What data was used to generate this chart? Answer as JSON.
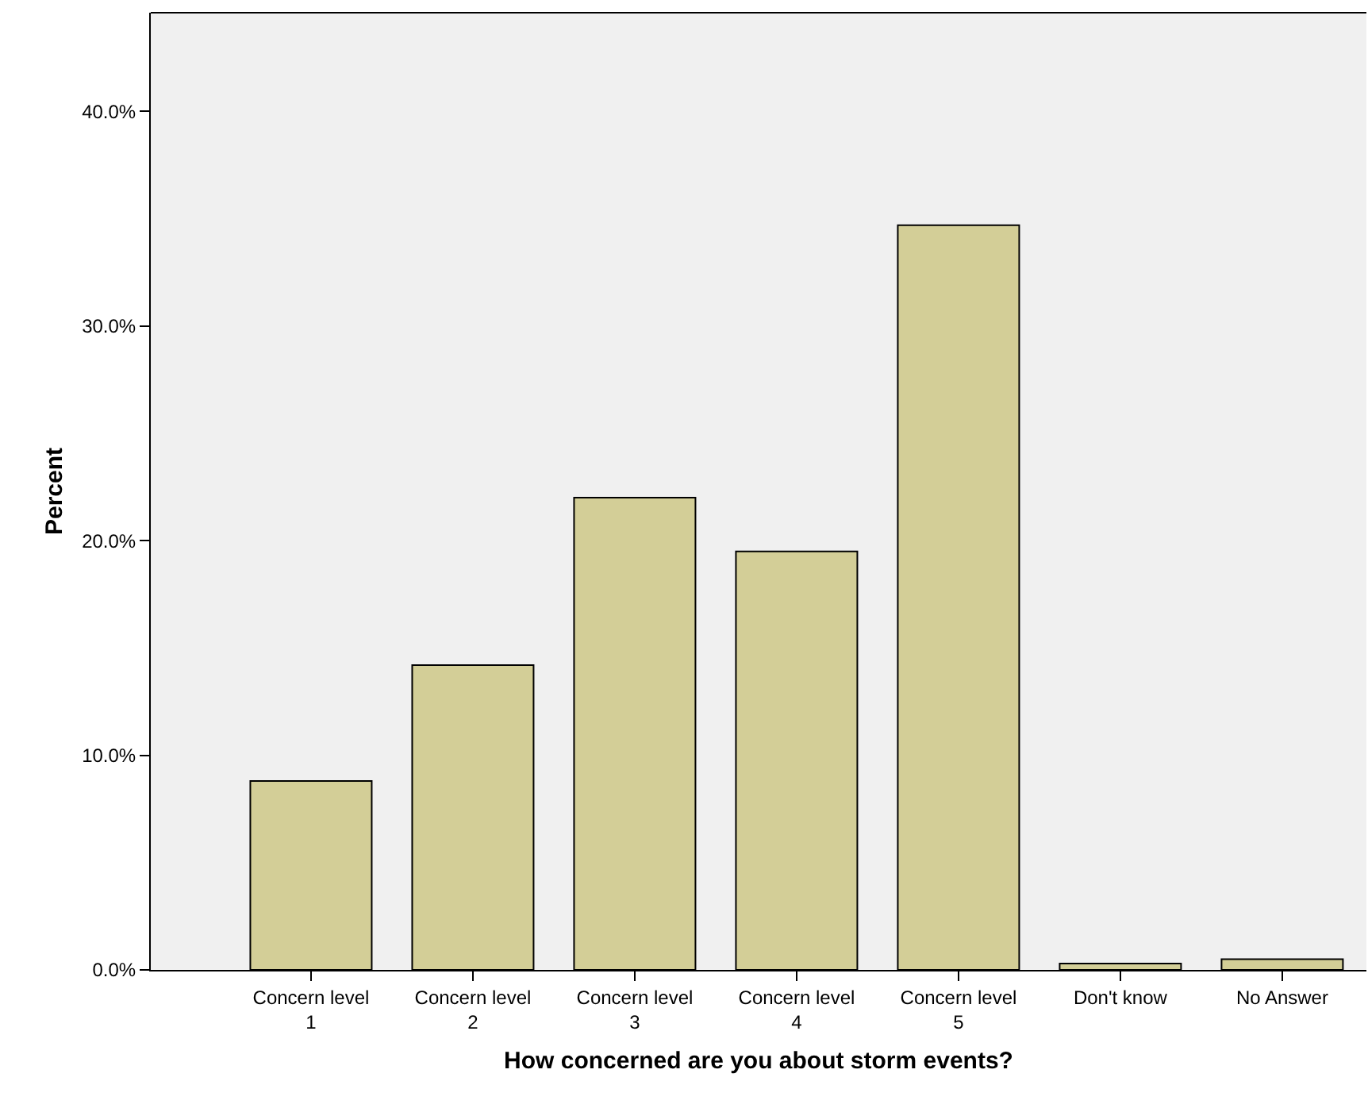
{
  "chart_data": {
    "type": "bar",
    "xlabel": "How concerned are you about storm events?",
    "ylabel": "Percent",
    "categories": [
      "Concern level 1",
      "Concern level 2",
      "Concern level 3",
      "Concern level 4",
      "Concern level 5",
      "Don't know",
      "No Answer"
    ],
    "values": [
      8.8,
      14.2,
      22.0,
      19.5,
      34.7,
      0.3,
      0.5
    ],
    "color": "#d3ce97",
    "ylim": [
      0,
      44.6
    ],
    "yticks": [
      {
        "value": 0,
        "label": "0.0%"
      },
      {
        "value": 10,
        "label": "10.0%"
      },
      {
        "value": 20,
        "label": "20.0%"
      },
      {
        "value": 30,
        "label": "30.0%"
      },
      {
        "value": 40,
        "label": "40.0%"
      }
    ],
    "grid": false,
    "legend": false
  }
}
